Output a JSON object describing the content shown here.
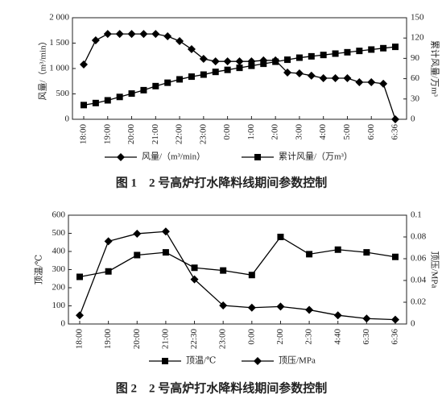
{
  "chart_data": [
    {
      "type": "line",
      "categories": [
        "18:00",
        null,
        "19:00",
        null,
        "20:00",
        null,
        "21:00",
        null,
        "22:00",
        null,
        "23:00",
        null,
        "0:00",
        null,
        "1:00",
        null,
        "2:00",
        null,
        "3:00",
        null,
        "4:00",
        null,
        "5:00",
        null,
        "6:00",
        null,
        "6:36"
      ],
      "series": [
        {
          "name": "风量/（m³/min）",
          "color": "#000000",
          "marker": "diamond",
          "values": [
            1080,
            1555,
            1680,
            1680,
            1680,
            1680,
            1680,
            1635,
            1540,
            1380,
            1190,
            1140,
            1140,
            1140,
            1140,
            1160,
            1160,
            920,
            905,
            860,
            810,
            810,
            810,
            730,
            730,
            700,
            0
          ]
        },
        {
          "name": "累计风量/（万m³）",
          "color": "#000000",
          "marker": "square",
          "axis": "y2",
          "values": [
            21,
            24,
            28,
            33,
            38,
            43,
            49,
            54,
            59,
            63,
            66,
            70,
            73,
            76,
            79,
            82,
            85,
            88,
            91,
            93,
            95,
            97,
            99,
            101,
            103,
            105,
            107
          ]
        }
      ],
      "ylabel": "风量/（m³/min）",
      "y2label": "累计风量/万m³",
      "ylim": [
        0,
        2000
      ],
      "yticks": [
        0,
        500,
        {
          "value": 1000,
          "label": "1 000"
        },
        {
          "value": 1500,
          "label": "1 500"
        },
        {
          "value": 2000,
          "label": "2 000"
        }
      ],
      "y2lim": [
        0,
        150
      ],
      "y2ticks": [
        0,
        30,
        60,
        90,
        120,
        150
      ],
      "caption": "图 1　2 号高炉打水降料线期间参数控制"
    },
    {
      "type": "line",
      "categories": [
        "18:00",
        "19:00",
        "20:00",
        "21:00",
        "22:30",
        "23:00",
        "0:00",
        "2:00",
        "2:30",
        "4:40",
        "6:30",
        "6:36"
      ],
      "series": [
        {
          "name": "顶温/℃",
          "color": "#000000",
          "marker": "square",
          "values": [
            260,
            290,
            380,
            395,
            310,
            295,
            270,
            480,
            385,
            410,
            395,
            370
          ]
        },
        {
          "name": "顶压/MPa",
          "color": "#000000",
          "marker": "diamond",
          "axis": "y2",
          "values": [
            0.008,
            0.076,
            0.083,
            0.085,
            0.041,
            0.017,
            0.015,
            0.016,
            0.013,
            0.008,
            0.005,
            0.004
          ]
        }
      ],
      "ylabel": "顶温/℃",
      "y2label": "顶压/MPa",
      "ylim": [
        0,
        600
      ],
      "yticks": [
        0,
        100,
        200,
        300,
        400,
        500,
        600
      ],
      "y2lim": [
        0,
        0.1
      ],
      "y2ticks": [
        0,
        0.02,
        0.04,
        0.06,
        0.08,
        0.1
      ],
      "caption": "图 2　2 号高炉打水降料线期间参数控制"
    }
  ]
}
